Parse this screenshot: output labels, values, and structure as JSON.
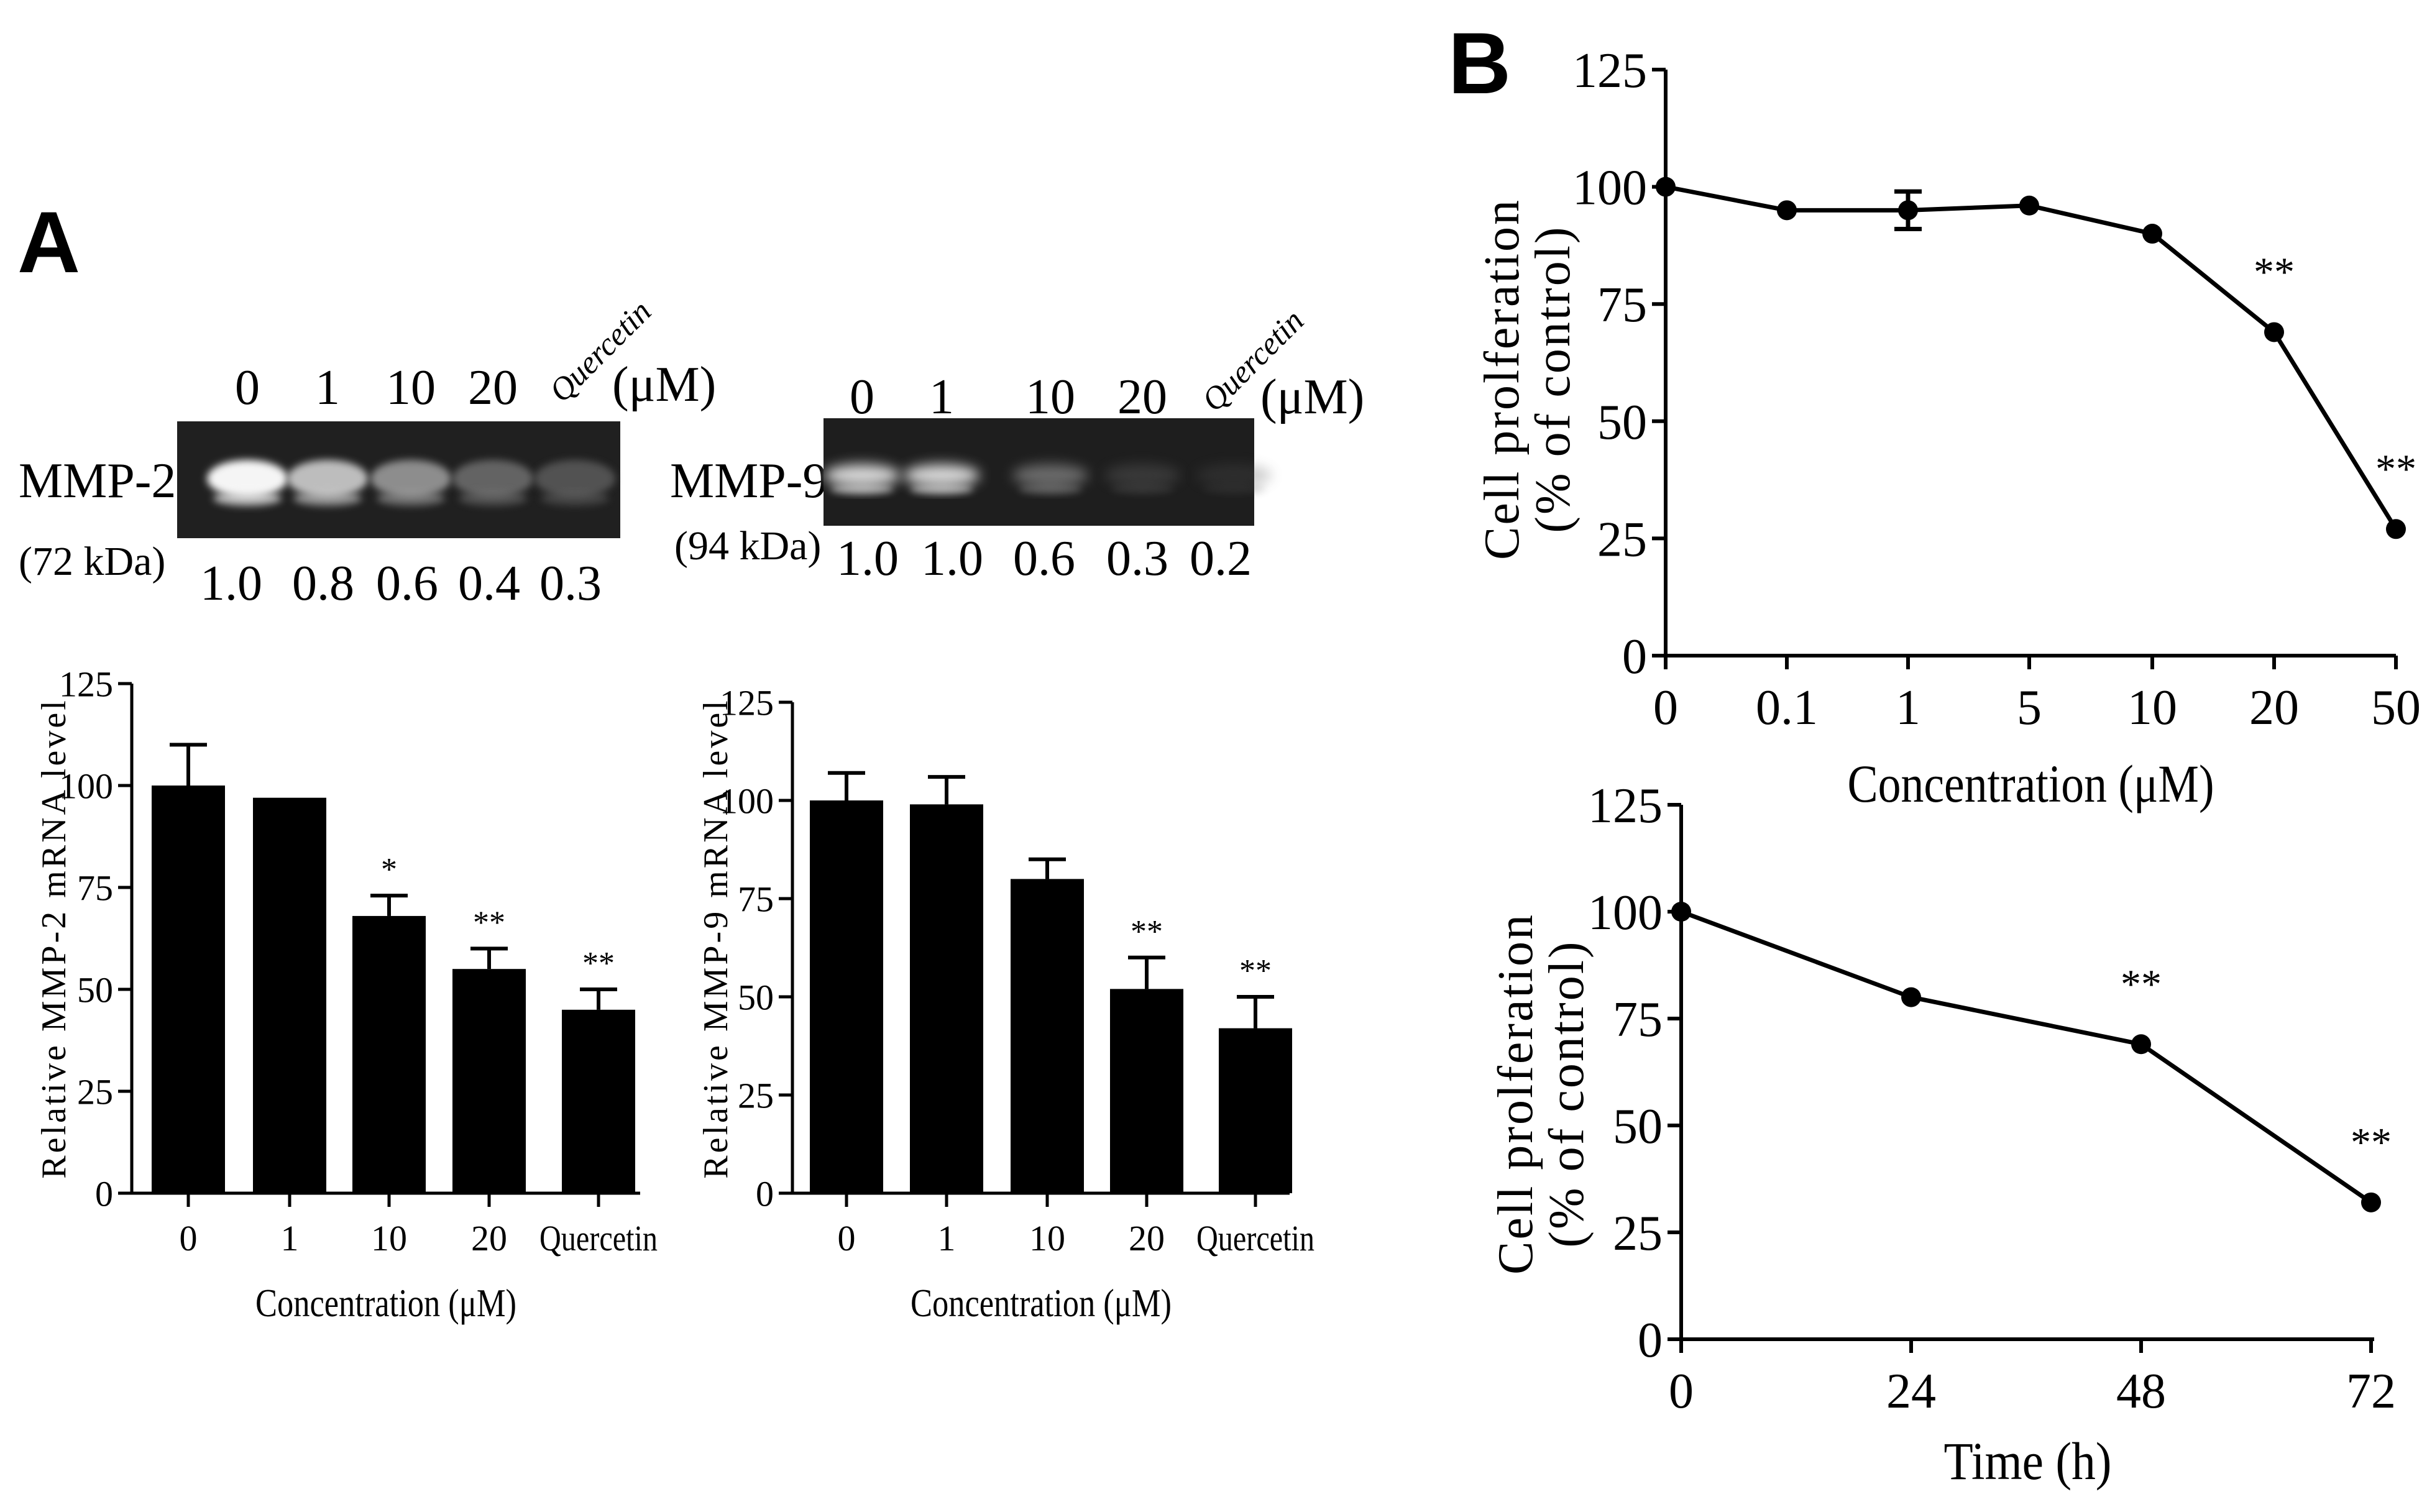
{
  "panels": {
    "A": "A",
    "B": "B"
  },
  "gels": [
    {
      "name": "MMP-2",
      "size": "(72 kDa)",
      "lanes": [
        "0",
        "1",
        "10",
        "20",
        "Quercetin"
      ],
      "unit": "(μM)",
      "ratios": [
        "1.0",
        "0.8",
        "0.6",
        "0.4",
        "0.3"
      ]
    },
    {
      "name": "MMP-9",
      "size": "(94 kDa)",
      "lanes": [
        "0",
        "1",
        "10",
        "20",
        "Quercetin"
      ],
      "unit": "(μM)",
      "ratios": [
        "1.0",
        "1.0",
        "0.6",
        "0.3",
        "0.2"
      ]
    }
  ],
  "chart_data": [
    {
      "type": "bar",
      "categories": [
        "0",
        "1",
        "10",
        "20",
        "Quercetin"
      ],
      "values": [
        100,
        97,
        68,
        55,
        45
      ],
      "errors": [
        10,
        0,
        5,
        5,
        5
      ],
      "significance": [
        "",
        "",
        "*",
        "**",
        "**"
      ],
      "title": "",
      "xlabel": "Concentration (μM)",
      "ylabel": "Relative MMP-2 mRNA level",
      "ylim": [
        0,
        125
      ],
      "yticks": [
        "0",
        "25",
        "50",
        "75",
        "100",
        "125"
      ]
    },
    {
      "type": "bar",
      "categories": [
        "0",
        "1",
        "10",
        "20",
        "Quercetin"
      ],
      "values": [
        100,
        99,
        80,
        52,
        42
      ],
      "errors": [
        7,
        7,
        5,
        8,
        8
      ],
      "significance": [
        "",
        "",
        "",
        "**",
        "**"
      ],
      "title": "",
      "xlabel": "Concentration (μM)",
      "ylabel": "Relative MMP-9 mRNA level",
      "ylim": [
        0,
        125
      ],
      "yticks": [
        "0",
        "25",
        "50",
        "75",
        "100",
        "125"
      ]
    },
    {
      "type": "line",
      "categories": [
        "0",
        "0.1",
        "1",
        "5",
        "10",
        "20",
        "50"
      ],
      "values": [
        100,
        95,
        95,
        96,
        90,
        69,
        27
      ],
      "errors": [
        0,
        0,
        4,
        0,
        0,
        0,
        0
      ],
      "significance": [
        "",
        "",
        "",
        "",
        "",
        "**",
        "**"
      ],
      "title": "",
      "xlabel": "Concentration (μM)",
      "ylabel": [
        "Cell prolferation",
        "(% of control)"
      ],
      "ylim": [
        0,
        125
      ],
      "yticks": [
        "0",
        "25",
        "50",
        "75",
        "100",
        "125"
      ]
    },
    {
      "type": "line",
      "categories": [
        "0",
        "24",
        "48",
        "72"
      ],
      "values": [
        100,
        80,
        69,
        32
      ],
      "errors": [
        0,
        0,
        0,
        0
      ],
      "significance": [
        "",
        "",
        "**",
        "**"
      ],
      "title": "",
      "xlabel": "Time (h)",
      "ylabel": [
        "Cell prolferation",
        "(% of control)"
      ],
      "ylim": [
        0,
        125
      ],
      "yticks": [
        "0",
        "25",
        "50",
        "75",
        "100",
        "125"
      ]
    }
  ]
}
